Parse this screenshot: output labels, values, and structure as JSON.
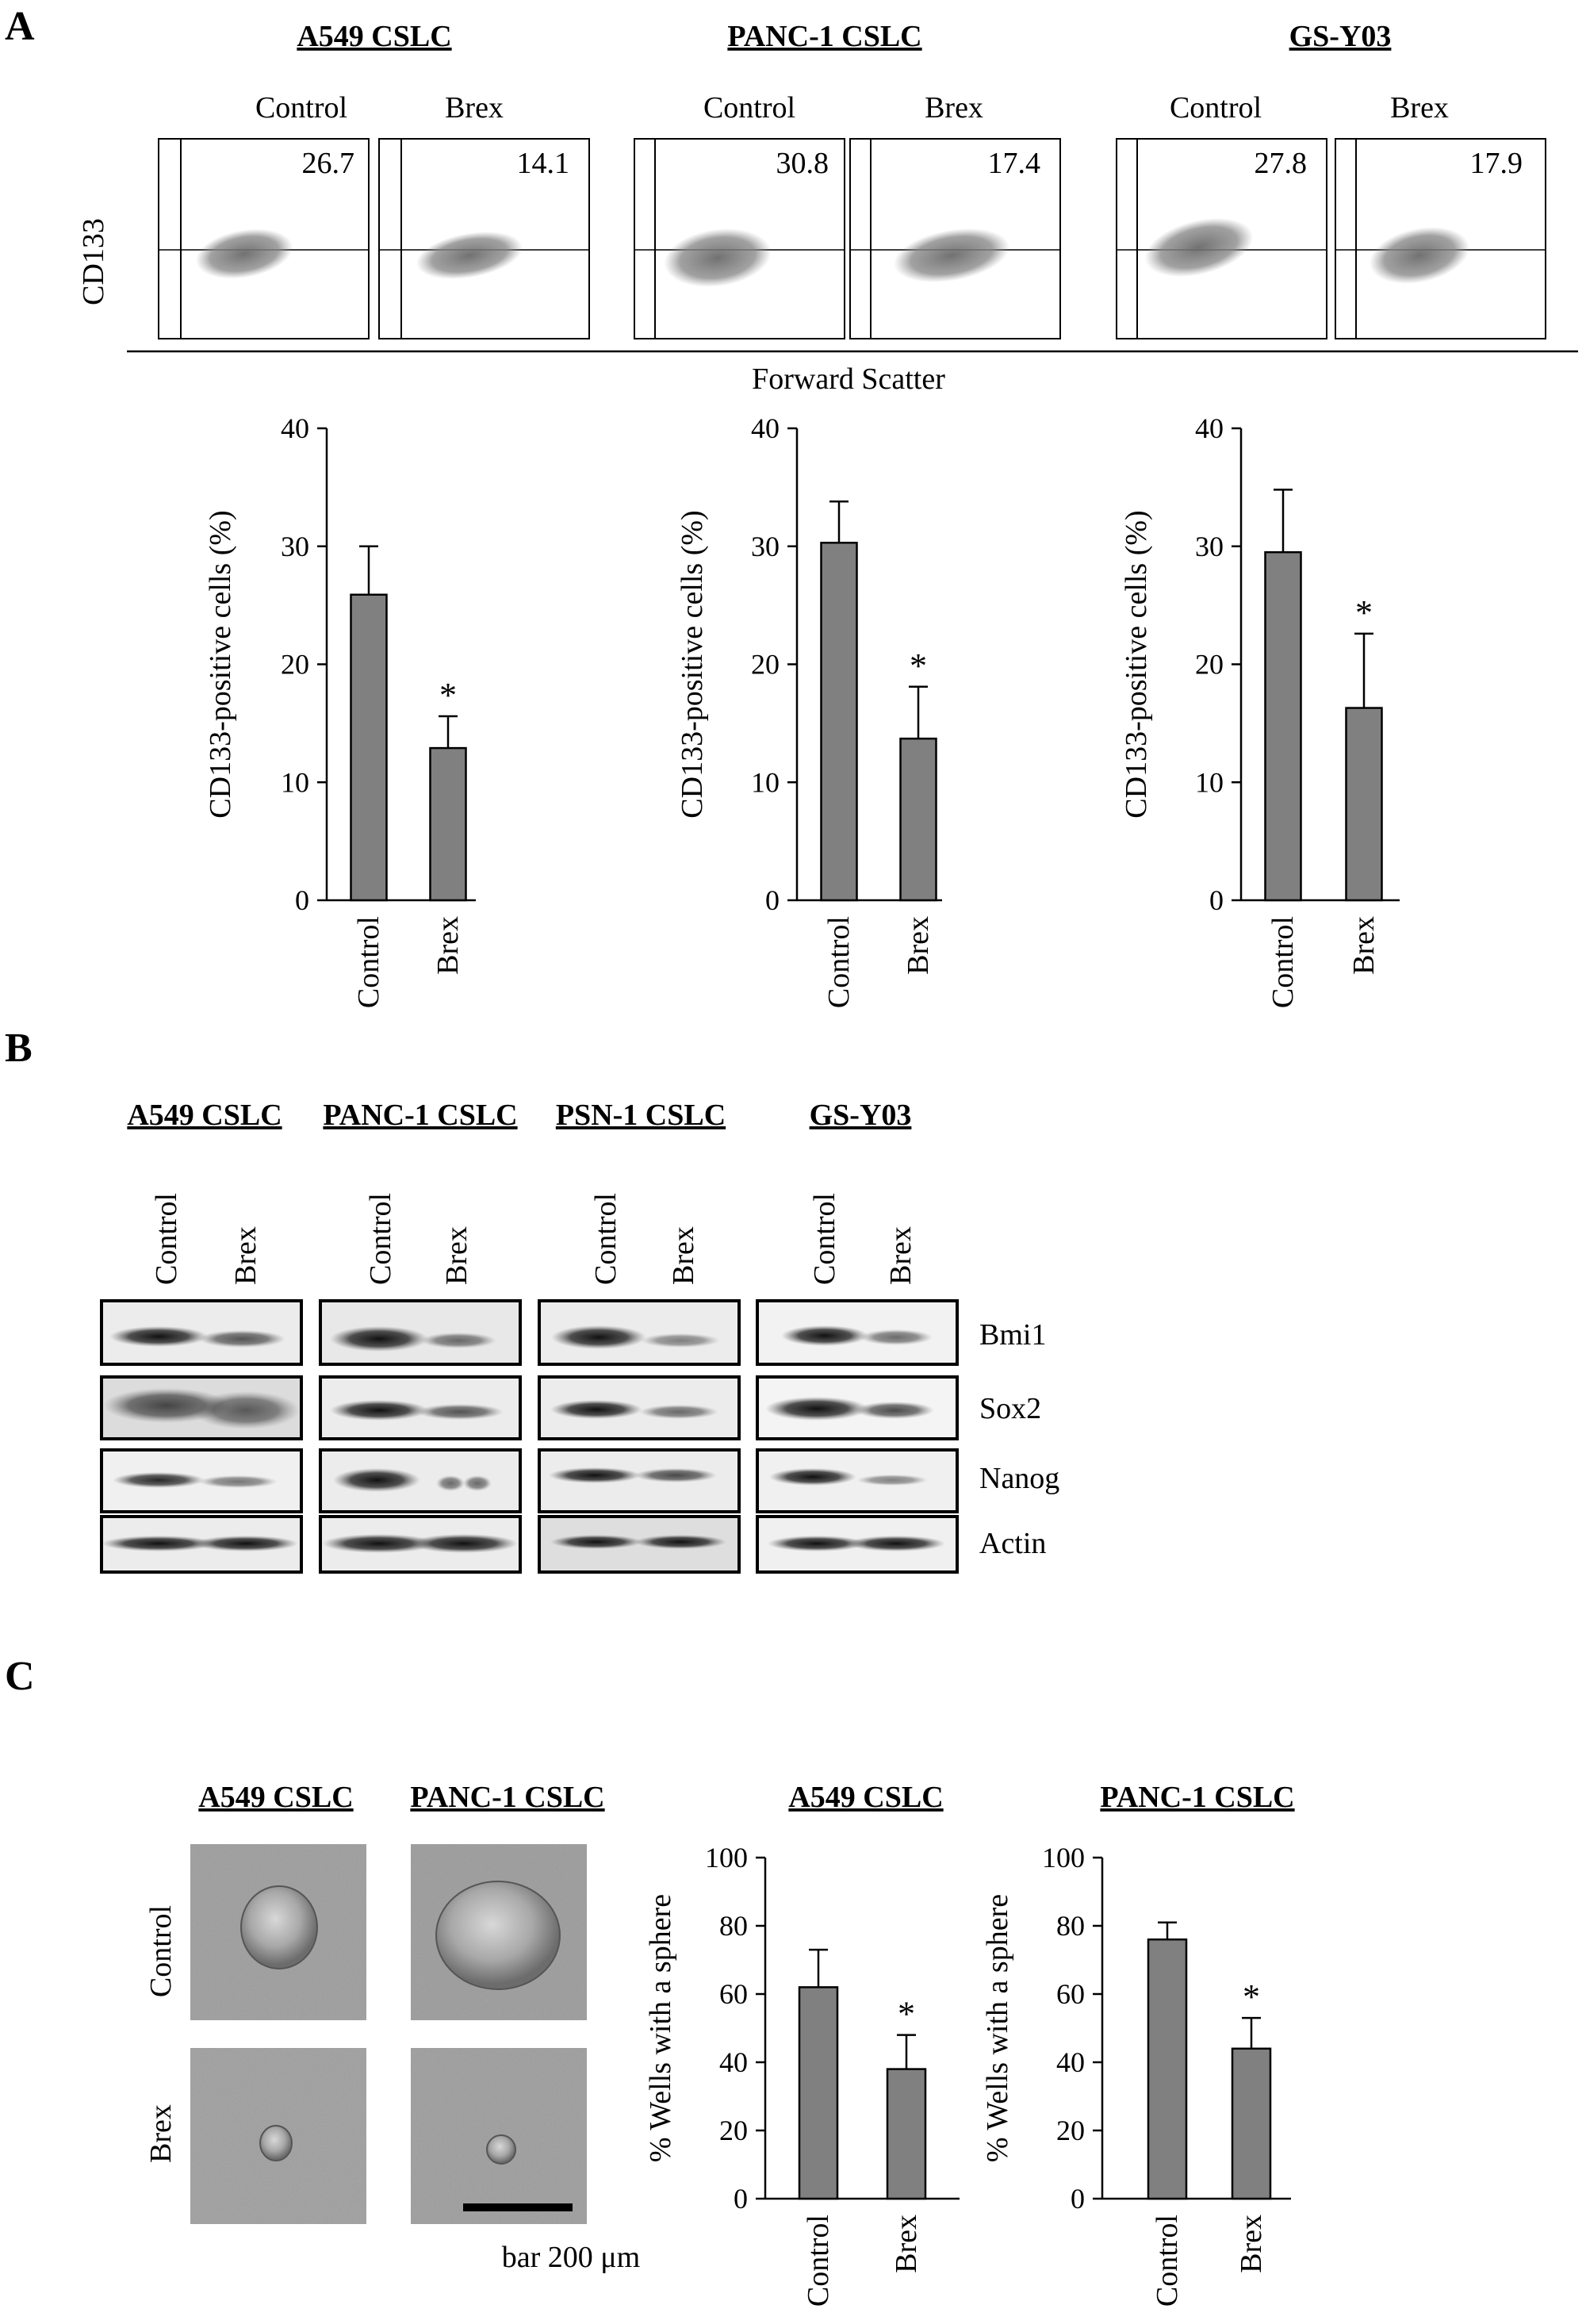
{
  "figure": {
    "panels": [
      "A",
      "B",
      "C"
    ]
  },
  "panel_a": {
    "flow": {
      "groups": [
        {
          "title": "A549 CSLC",
          "conditions": [
            "Control",
            "Brex"
          ],
          "values": [
            "26.7",
            "14.1"
          ]
        },
        {
          "title": "PANC-1 CSLC",
          "conditions": [
            "Control",
            "Brex"
          ],
          "values": [
            "30.8",
            "17.4"
          ]
        },
        {
          "title": "GS-Y03",
          "conditions": [
            "Control",
            "Brex"
          ],
          "values": [
            "27.8",
            "17.9"
          ]
        }
      ],
      "y_label": "CD133",
      "x_label": "Forward Scatter"
    }
  },
  "panel_b": {
    "groups": [
      {
        "title": "A549 CSLC",
        "lanes": [
          "Control",
          "Brex"
        ]
      },
      {
        "title": "PANC-1 CSLC",
        "lanes": [
          "Control",
          "Brex"
        ]
      },
      {
        "title": "PSN-1 CSLC",
        "lanes": [
          "Control",
          "Brex"
        ]
      },
      {
        "title": "GS-Y03",
        "lanes": [
          "Control",
          "Brex"
        ]
      }
    ],
    "proteins": [
      "Bmi1",
      "Sox2",
      "Nanog",
      "Actin"
    ]
  },
  "panel_c": {
    "images": {
      "columns": [
        "A549 CSLC",
        "PANC-1 CSLC"
      ],
      "rows": [
        "Control",
        "Brex"
      ],
      "scale_bar": "bar 200 μm"
    }
  },
  "chart_data": [
    {
      "type": "bar",
      "panel": "A",
      "title": "",
      "categories": [
        "Control",
        "Brex"
      ],
      "values": [
        25.9,
        12.9
      ],
      "errors": [
        4.1,
        2.7
      ],
      "significance": [
        "",
        "*"
      ],
      "ylabel": "CD133-positive cells (%)",
      "ylim": [
        0,
        40
      ],
      "yticks": [
        0,
        10,
        20,
        30,
        40
      ],
      "color": "#808080"
    },
    {
      "type": "bar",
      "panel": "A",
      "title": "",
      "categories": [
        "Control",
        "Brex"
      ],
      "values": [
        30.3,
        13.7
      ],
      "errors": [
        3.5,
        4.4
      ],
      "significance": [
        "",
        "*"
      ],
      "ylabel": "CD133-positive cells (%)",
      "ylim": [
        0,
        40
      ],
      "yticks": [
        0,
        10,
        20,
        30,
        40
      ],
      "color": "#808080"
    },
    {
      "type": "bar",
      "panel": "A",
      "title": "",
      "categories": [
        "Control",
        "Brex"
      ],
      "values": [
        29.5,
        16.3
      ],
      "errors": [
        5.3,
        6.3
      ],
      "significance": [
        "",
        "*"
      ],
      "ylabel": "CD133-positive cells (%)",
      "ylim": [
        0,
        40
      ],
      "yticks": [
        0,
        10,
        20,
        30,
        40
      ],
      "color": "#808080"
    },
    {
      "type": "bar",
      "panel": "C",
      "title": "A549 CSLC",
      "categories": [
        "Control",
        "Brex"
      ],
      "values": [
        62,
        38
      ],
      "errors": [
        11,
        10
      ],
      "significance": [
        "",
        "*"
      ],
      "ylabel": "% Wells with a sphere",
      "ylim": [
        0,
        100
      ],
      "yticks": [
        0,
        20,
        40,
        60,
        80,
        100
      ],
      "color": "#808080"
    },
    {
      "type": "bar",
      "panel": "C",
      "title": "PANC-1 CSLC",
      "categories": [
        "Control",
        "Brex"
      ],
      "values": [
        76,
        44
      ],
      "errors": [
        5,
        9
      ],
      "significance": [
        "",
        "*"
      ],
      "ylabel": "% Wells with a sphere",
      "ylim": [
        0,
        100
      ],
      "yticks": [
        0,
        20,
        40,
        60,
        80,
        100
      ],
      "color": "#808080"
    }
  ]
}
